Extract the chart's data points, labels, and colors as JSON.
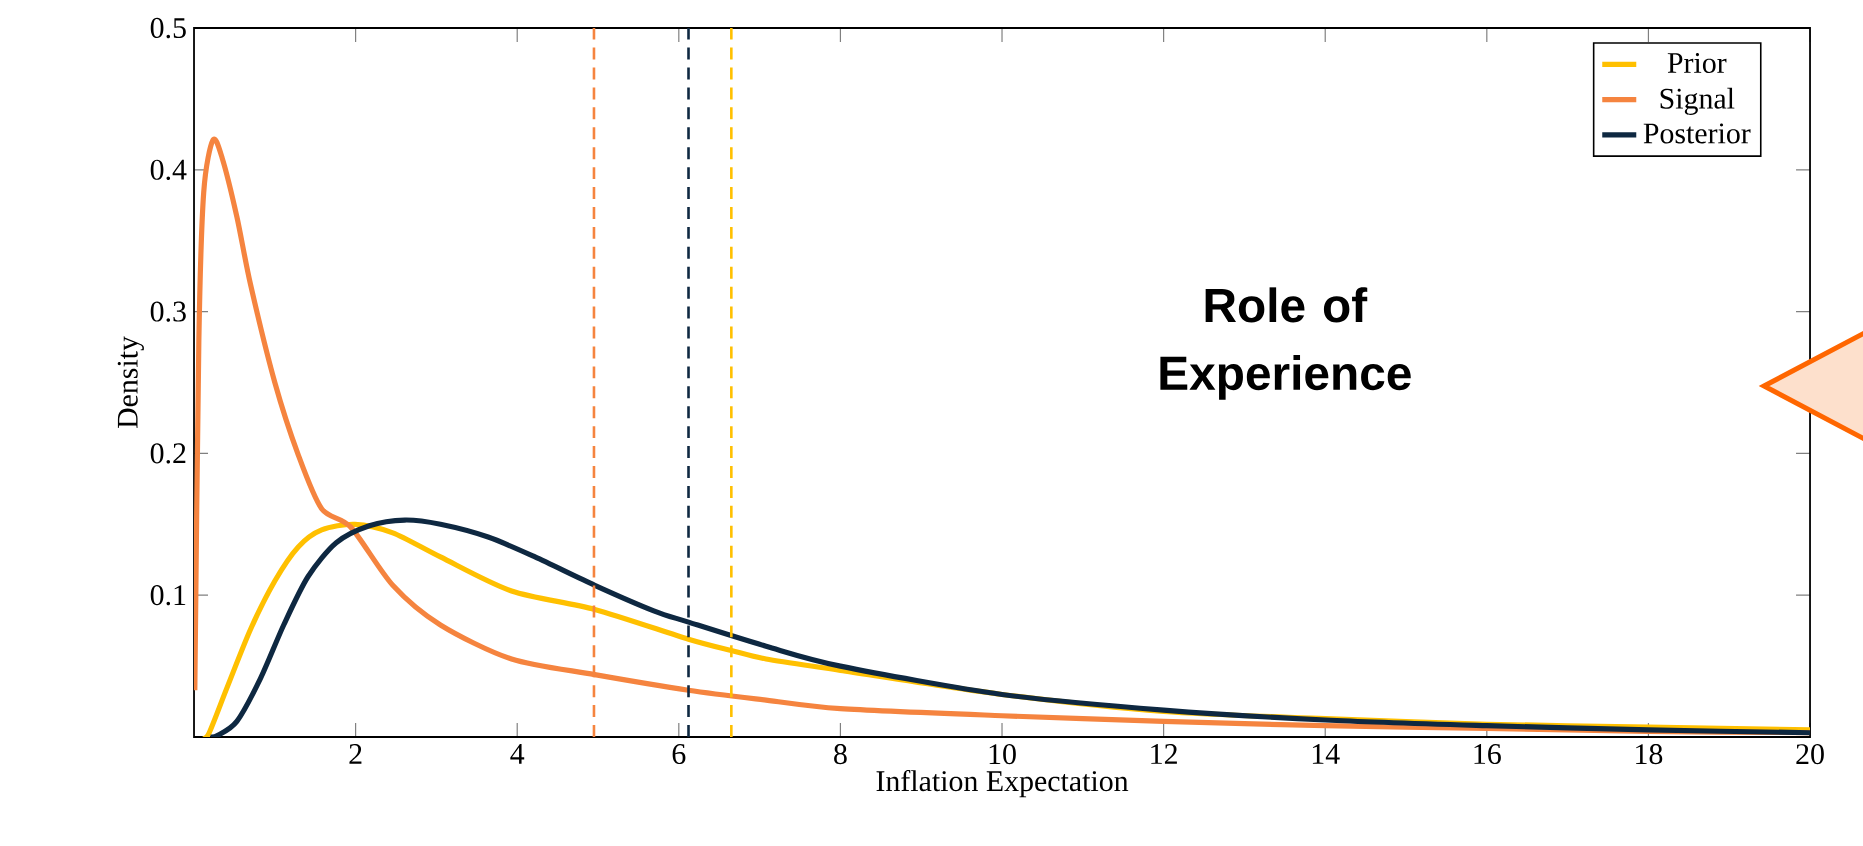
{
  "chart_data": {
    "type": "line",
    "xlabel": "Inflation Expectation",
    "ylabel": "Density",
    "xlim": [
      0,
      20
    ],
    "ylim": [
      0,
      0.5
    ],
    "xticks": [
      2,
      4,
      6,
      8,
      10,
      12,
      14,
      16,
      18,
      20
    ],
    "yticks": [
      0.1,
      0.2,
      0.3,
      0.4,
      0.5
    ],
    "legend": "top right",
    "grid": false,
    "marker": "none",
    "line_style": "solid",
    "series": [
      {
        "name": "Prior",
        "color": "#ffc000",
        "x": [
          0.1,
          0.18,
          0.41,
          0.7,
          1.0,
          1.29,
          1.58,
          1.99,
          2.46,
          3.05,
          3.93,
          4.96,
          6.12,
          6.65,
          7.08,
          8,
          10,
          12,
          14,
          16,
          18,
          20
        ],
        "values": [
          0,
          0.002,
          0.035,
          0.076,
          0.11,
          0.134,
          0.146,
          0.15,
          0.144,
          0.127,
          0.103,
          0.09,
          0.069,
          0.061,
          0.055,
          0.047,
          0.03,
          0.018,
          0.013,
          0.009,
          0.007,
          0.005
        ]
      },
      {
        "name": "Signal",
        "color": "#f5843f",
        "x": [
          0.01,
          0.06,
          0.12,
          0.235,
          0.35,
          0.53,
          0.7,
          1.0,
          1.29,
          1.58,
          1.94,
          2.46,
          3.05,
          3.93,
          4.96,
          6.12,
          7.08,
          8,
          10,
          12,
          14,
          16,
          18,
          20
        ],
        "values": [
          0.033,
          0.28,
          0.384,
          0.421,
          0.408,
          0.367,
          0.319,
          0.25,
          0.199,
          0.161,
          0.148,
          0.107,
          0.079,
          0.055,
          0.044,
          0.033,
          0.026,
          0.02,
          0.015,
          0.011,
          0.008,
          0.006,
          0.004,
          0.003
        ]
      },
      {
        "name": "Posterior",
        "color": "#0e2841",
        "x": [
          0.2,
          0.29,
          0.53,
          0.82,
          1.11,
          1.41,
          1.76,
          2.17,
          2.61,
          3.05,
          3.64,
          4.22,
          4.96,
          5.69,
          6.12,
          7.08,
          8,
          10,
          12,
          14,
          16,
          18,
          20
        ],
        "values": [
          0,
          0.001,
          0.011,
          0.041,
          0.079,
          0.113,
          0.137,
          0.149,
          0.153,
          0.15,
          0.141,
          0.127,
          0.107,
          0.089,
          0.081,
          0.064,
          0.05,
          0.03,
          0.019,
          0.012,
          0.008,
          0.005,
          0.003
        ]
      }
    ],
    "ref_lines": [
      {
        "axis": "x",
        "value": 4.95,
        "color": "#f5843f",
        "line_style": "dashed"
      },
      {
        "axis": "x",
        "value": 6.12,
        "color": "#0e2841",
        "line_style": "dashed"
      },
      {
        "axis": "x",
        "value": 6.65,
        "color": "#ffc000",
        "line_style": "dashed"
      }
    ],
    "annotations": [
      "Role of Experience"
    ]
  }
}
